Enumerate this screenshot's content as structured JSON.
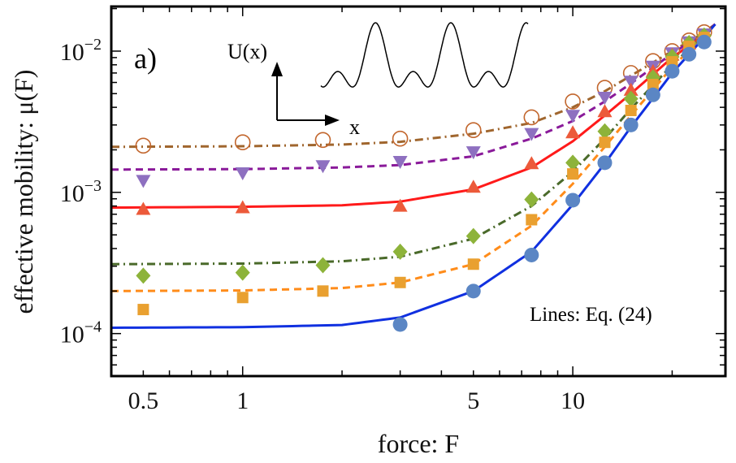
{
  "chart_data": {
    "type": "scatter",
    "panel_label": "a)",
    "annotation": "Lines: Eq. (24)",
    "inset": {
      "ylabel": "U(x)",
      "xlabel": "x"
    },
    "xlabel": "force: F",
    "ylabel": "effective mobility: μ(F)",
    "xscale": "log",
    "yscale": "log",
    "xlim": [
      0.4,
      29
    ],
    "ylim": [
      5e-05,
      0.0207
    ],
    "xticks": [
      {
        "v": 0.5,
        "label": "0.5"
      },
      {
        "v": 1,
        "label": "1"
      },
      {
        "v": 5,
        "label": "5"
      },
      {
        "v": 10,
        "label": "10"
      }
    ],
    "yticks": [
      {
        "v": 0.0001,
        "base": "10",
        "exp": "−4"
      },
      {
        "v": 0.001,
        "base": "10",
        "exp": "−3"
      },
      {
        "v": 0.01,
        "base": "10",
        "exp": "−2"
      }
    ],
    "grid": false,
    "series": [
      {
        "marker": "open-circle",
        "color": "#c2662d",
        "line_color": "#a0662e",
        "line_style": "dashdot",
        "x": [
          0.5,
          1,
          1.75,
          3,
          5,
          7.5,
          10,
          12.5,
          15,
          17.5,
          20,
          22.5,
          25
        ],
        "y": [
          0.00214,
          0.00226,
          0.00235,
          0.0024,
          0.00276,
          0.0034,
          0.0044,
          0.0055,
          0.007,
          0.0085,
          0.01,
          0.0119,
          0.0136
        ],
        "line_x": [
          0.4,
          1,
          2,
          3,
          5,
          7.5,
          10,
          12.5,
          15,
          20,
          25,
          27
        ],
        "line_y": [
          0.0021,
          0.00212,
          0.00218,
          0.00228,
          0.0026,
          0.0031,
          0.004,
          0.0052,
          0.0067,
          0.01,
          0.0135,
          0.0155
        ]
      },
      {
        "marker": "triangle-down",
        "color": "#8e70c0",
        "line_color": "#8a1a9a",
        "line_style": "dashed",
        "x": [
          0.5,
          1,
          1.75,
          3,
          5,
          7.5,
          10,
          12.5,
          15,
          17.5,
          20,
          22.5,
          25
        ],
        "y": [
          0.00121,
          0.00137,
          0.00154,
          0.00165,
          0.00193,
          0.0026,
          0.0035,
          0.0047,
          0.0061,
          0.0078,
          0.0097,
          0.0116,
          0.0132
        ],
        "line_x": [
          0.4,
          1,
          2,
          3,
          5,
          7.5,
          10,
          12.5,
          15,
          20,
          25,
          27
        ],
        "line_y": [
          0.00145,
          0.00146,
          0.0015,
          0.00156,
          0.0018,
          0.0024,
          0.0032,
          0.0044,
          0.0059,
          0.0096,
          0.0135,
          0.0155
        ]
      },
      {
        "marker": "triangle-up",
        "color": "#ec5a3a",
        "line_color": "#ff1a1a",
        "line_style": "solid",
        "x": [
          0.5,
          1,
          3,
          5,
          7.5,
          10,
          12.5,
          15,
          17.5,
          20,
          22.5,
          25
        ],
        "y": [
          0.00076,
          0.00078,
          0.0008,
          0.00109,
          0.0016,
          0.00265,
          0.00374,
          0.0053,
          0.0072,
          0.0094,
          0.0113,
          0.0127
        ],
        "line_x": [
          0.4,
          1,
          2,
          3,
          5,
          7.5,
          10,
          12.5,
          15,
          20,
          25,
          27
        ],
        "line_y": [
          0.00078,
          0.00079,
          0.00081,
          0.00086,
          0.00105,
          0.0015,
          0.0023,
          0.0035,
          0.005,
          0.009,
          0.013,
          0.0155
        ]
      },
      {
        "marker": "diamond",
        "color": "#8db33a",
        "line_color": "#4a6a2a",
        "line_style": "dashdot",
        "x": [
          0.5,
          1,
          1.75,
          3,
          5,
          7.5,
          10,
          12.5,
          15,
          17.5,
          20,
          22.5,
          25
        ],
        "y": [
          0.000257,
          0.00027,
          0.000305,
          0.00038,
          0.00049,
          0.00089,
          0.00162,
          0.0027,
          0.0046,
          0.0065,
          0.0091,
          0.0114,
          0.0129
        ],
        "line_x": [
          0.4,
          1,
          2,
          3,
          5,
          7.5,
          10,
          12.5,
          15,
          20,
          25,
          27
        ],
        "line_y": [
          0.00031,
          0.000313,
          0.000325,
          0.00035,
          0.00047,
          0.0008,
          0.0014,
          0.0024,
          0.0039,
          0.008,
          0.013,
          0.0155
        ]
      },
      {
        "marker": "square",
        "color": "#e9a030",
        "line_color": "#ff8c1a",
        "line_style": "dashed",
        "x": [
          0.5,
          1,
          1.75,
          3,
          5,
          7.5,
          10,
          12.5,
          15,
          17.5,
          20,
          22.5,
          25
        ],
        "y": [
          0.000148,
          0.00018,
          0.0002,
          0.00023,
          0.00031,
          0.00064,
          0.00135,
          0.00226,
          0.0038,
          0.0058,
          0.0084,
          0.0108,
          0.0125
        ],
        "line_x": [
          0.4,
          1,
          2,
          3,
          5,
          7.5,
          10,
          12.5,
          15,
          20,
          25,
          27
        ],
        "line_y": [
          0.0002,
          0.000202,
          0.00021,
          0.00023,
          0.00031,
          0.00058,
          0.00115,
          0.0021,
          0.0035,
          0.0077,
          0.0128,
          0.0155
        ]
      },
      {
        "marker": "circle",
        "color": "#5b86c4",
        "line_color": "#1030e0",
        "line_style": "solid",
        "x": [
          3,
          5,
          7.5,
          10,
          12.5,
          15,
          17.5,
          20,
          22.5,
          25
        ],
        "y": [
          0.000116,
          0.0002,
          0.00036,
          0.00088,
          0.00162,
          0.003,
          0.0049,
          0.0072,
          0.0095,
          0.0116
        ],
        "line_x": [
          0.4,
          1,
          2,
          3,
          5,
          7.5,
          10,
          12.5,
          15,
          20,
          25,
          27
        ],
        "line_y": [
          0.00011,
          0.000111,
          0.000115,
          0.00013,
          0.0002,
          0.00038,
          0.00082,
          0.0016,
          0.0029,
          0.007,
          0.0125,
          0.0155
        ]
      }
    ]
  }
}
